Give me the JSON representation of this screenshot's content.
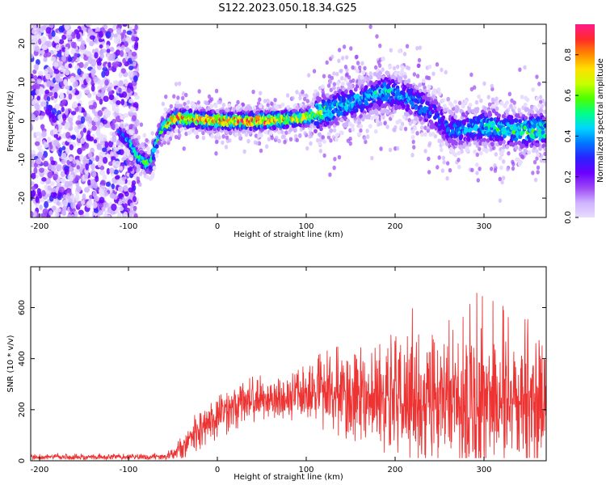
{
  "title": "S122.2023.050.18.34.G25",
  "chart_data": [
    {
      "type": "heatmap",
      "xlabel": "Height of straight line (km)",
      "ylabel": "Frequency (Hz)",
      "xlim": [
        -210,
        370
      ],
      "ylim": [
        -25,
        25
      ],
      "xticks": [
        -200,
        -100,
        0,
        100,
        200,
        300
      ],
      "yticks": [
        -20,
        -10,
        0,
        10,
        20
      ],
      "colorbar": {
        "label": "Normalized spectral amplitude",
        "range": [
          0.0,
          0.95
        ],
        "ticks": [
          0.0,
          0.2,
          0.4,
          0.6,
          0.8
        ],
        "colormap": [
          "#e8dcff",
          "#cfb2ff",
          "#9b47f5",
          "#6a00ff",
          "#2a22ff",
          "#0077ff",
          "#00d6ff",
          "#00ff88",
          "#4cff00",
          "#c8ff00",
          "#ffe000",
          "#ff8800",
          "#ff2a2a",
          "#ff1a8c"
        ]
      },
      "ridge": {
        "x": [
          -110,
          -100,
          -90,
          -80,
          -74,
          -70,
          -62,
          -52,
          -45,
          -30,
          0,
          50,
          90,
          110,
          130,
          150,
          165,
          180,
          190,
          200,
          215,
          230,
          245,
          255,
          262,
          275,
          300,
          330,
          365
        ],
        "y": [
          -3,
          -5,
          -9,
          -11,
          -11,
          -7,
          -2,
          0,
          1,
          0.5,
          0,
          0,
          0.5,
          1.5,
          3,
          4.5,
          5.5,
          7,
          7.5,
          7,
          6,
          4,
          1.5,
          -1,
          -2.5,
          -2,
          -1.5,
          -2.5,
          -2.5
        ],
        "peak_amplitude": [
          0.35,
          0.45,
          0.55,
          0.6,
          0.6,
          0.55,
          0.6,
          0.85,
          0.9,
          0.9,
          0.9,
          0.92,
          0.8,
          0.65,
          0.5,
          0.45,
          0.45,
          0.45,
          0.5,
          0.45,
          0.42,
          0.4,
          0.35,
          0.35,
          0.35,
          0.45,
          0.5,
          0.55,
          0.6
        ]
      },
      "noise_region_x": [
        -210,
        -100
      ]
    },
    {
      "type": "line",
      "xlabel": "Height of straight line (km)",
      "ylabel": "SNR (10 * v/v)",
      "xlim": [
        -210,
        370
      ],
      "ylim": [
        0,
        760
      ],
      "xticks": [
        -200,
        -100,
        0,
        100,
        200,
        300
      ],
      "yticks": [
        0,
        200,
        400,
        600
      ],
      "color": "#ee3333",
      "envelope": {
        "x": [
          -210,
          -100,
          -60,
          -50,
          -40,
          -30,
          -20,
          0,
          20,
          40,
          60,
          80,
          100,
          120,
          150,
          180,
          200,
          220,
          250,
          280,
          300,
          320,
          340,
          370
        ],
        "mean": [
          15,
          15,
          15,
          25,
          50,
          90,
          120,
          180,
          220,
          240,
          245,
          250,
          260,
          270,
          260,
          250,
          245,
          240,
          240,
          240,
          250,
          240,
          230,
          220
        ],
        "max": [
          30,
          30,
          30,
          60,
          100,
          170,
          190,
          250,
          300,
          330,
          340,
          360,
          380,
          430,
          470,
          470,
          500,
          600,
          560,
          600,
          720,
          650,
          600,
          650
        ],
        "min": [
          5,
          5,
          5,
          5,
          10,
          20,
          40,
          60,
          100,
          150,
          170,
          160,
          150,
          120,
          80,
          40,
          20,
          10,
          10,
          10,
          10,
          10,
          10,
          10
        ]
      }
    }
  ]
}
